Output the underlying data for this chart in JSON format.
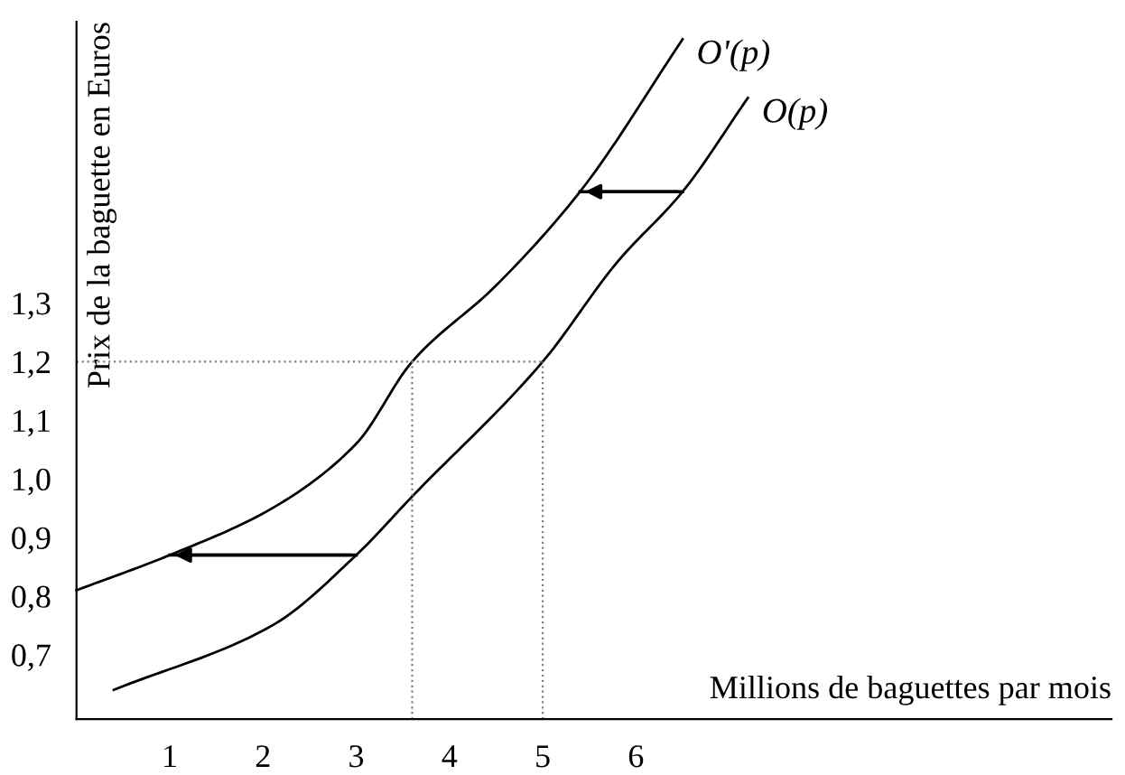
{
  "chart_data": {
    "type": "line",
    "xlabel": "Millions de baguettes par mois",
    "ylabel": "Prix de la baguette en Euros",
    "xlim": [
      0,
      11.1
    ],
    "ylim": [
      0.59,
      1.78
    ],
    "xticks": [
      1,
      2,
      3,
      4,
      5,
      6
    ],
    "yticks": [
      {
        "value": 0.7,
        "label": "0,7"
      },
      {
        "value": 0.8,
        "label": "0,8"
      },
      {
        "value": 0.9,
        "label": "0,9"
      },
      {
        "value": 1.0,
        "label": "1,0"
      },
      {
        "value": 1.1,
        "label": "1,1"
      },
      {
        "value": 1.2,
        "label": "1,2"
      },
      {
        "value": 1.3,
        "label": "1,3"
      }
    ],
    "grid": false,
    "legend": false,
    "series": [
      {
        "name": "O'(p)",
        "color": "#000000",
        "x": [
          0,
          1,
          2.1,
          3,
          3.6,
          4.5,
          5.4,
          6.5
        ],
        "values": [
          0.81,
          0.87,
          0.95,
          1.06,
          1.2,
          1.33,
          1.49,
          1.75
        ]
      },
      {
        "name": "O(p)",
        "color": "#000000",
        "x": [
          0.4,
          2.1,
          3,
          3.6,
          5,
          5.8,
          6.5,
          7.2
        ],
        "values": [
          0.64,
          0.75,
          0.87,
          0.97,
          1.2,
          1.37,
          1.49,
          1.65
        ]
      },
      {
        "color": "#000000",
        "line_style": "solid",
        "x": [
          6.5,
          5.4
        ],
        "values": [
          1.49,
          1.49
        ]
      },
      {
        "color": "#000000",
        "line_style": "solid",
        "x": [
          3.0,
          1.0
        ],
        "values": [
          0.87,
          0.87
        ]
      },
      {
        "color": "#808080",
        "line_style": "dotted",
        "x": [
          0,
          5
        ],
        "values": [
          1.2,
          1.2
        ]
      },
      {
        "color": "#808080",
        "line_style": "dotted",
        "x": [
          3.6,
          3.6
        ],
        "values": [
          0.59,
          1.2
        ]
      },
      {
        "color": "#808080",
        "line_style": "dotted",
        "x": [
          5,
          5
        ],
        "values": [
          0.59,
          1.2
        ]
      }
    ]
  }
}
